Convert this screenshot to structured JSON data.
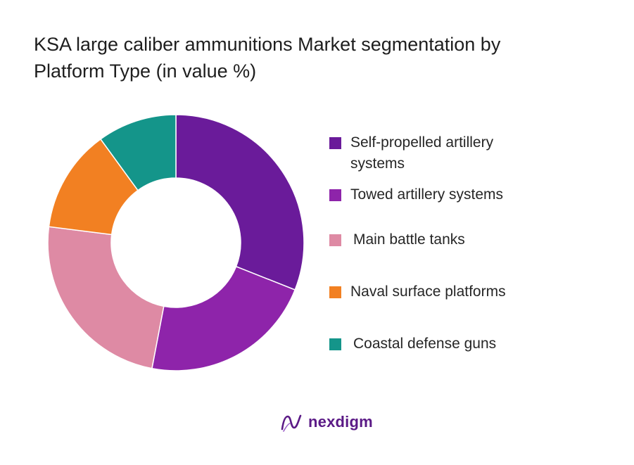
{
  "chart_data": {
    "type": "pie",
    "subtype": "donut",
    "title_lines": [
      "KSA large caliber ammunitions Market segmentation by",
      "Platform Type (in value %)"
    ],
    "categories": [
      "Self-propelled artillery systems",
      "Towed artillery systems",
      "Main battle tanks",
      "Naval surface platforms",
      "Coastal defense guns"
    ],
    "legend_lines": [
      [
        "Self-propelled artillery",
        "systems"
      ],
      [
        "Towed artillery systems"
      ],
      [
        "Main battle tanks"
      ],
      [
        "Naval surface platforms"
      ],
      [
        "Coastal defense guns"
      ]
    ],
    "values": [
      31,
      22,
      24,
      13,
      10
    ],
    "colors": [
      "#6a1b9a",
      "#8e24aa",
      "#de8aa4",
      "#f28022",
      "#14958a"
    ],
    "legend_position": "right",
    "start_angle_deg": 0,
    "direction": "clockwise"
  },
  "brand": {
    "name": "nexdigm",
    "logo_icon": "nexdigm-logo-icon",
    "color": "#5b1a86"
  }
}
